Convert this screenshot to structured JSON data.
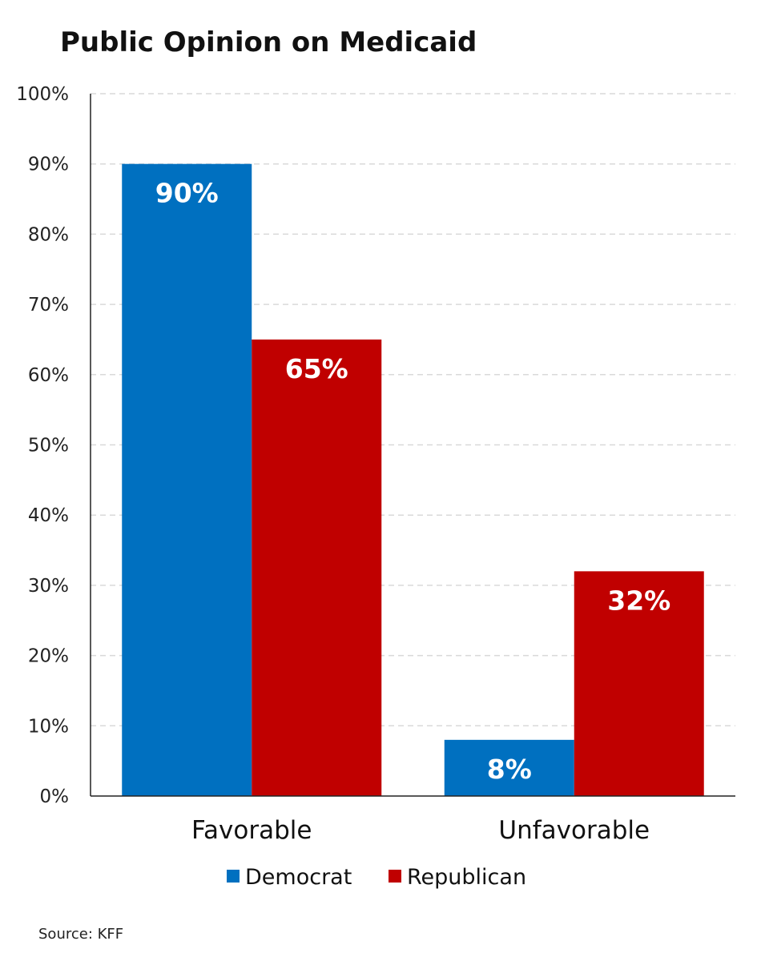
{
  "chart_data": {
    "type": "bar",
    "title": "Public Opinion on Medicaid",
    "categories": [
      "Favorable",
      "Unfavorable"
    ],
    "series": [
      {
        "name": "Democrat",
        "color": "#0070C0",
        "values": [
          90,
          8
        ],
        "labels": [
          "90%",
          "8%"
        ]
      },
      {
        "name": "Republican",
        "color": "#C00000",
        "values": [
          65,
          32
        ],
        "labels": [
          "65%",
          "32%"
        ]
      }
    ],
    "ylim": [
      0,
      100
    ],
    "yticks": [
      0,
      10,
      20,
      30,
      40,
      50,
      60,
      70,
      80,
      90,
      100
    ],
    "ytick_labels": [
      "0%",
      "10%",
      "20%",
      "30%",
      "40%",
      "50%",
      "60%",
      "70%",
      "80%",
      "90%",
      "100%"
    ],
    "xlabel": "",
    "ylabel": "",
    "grid": true,
    "legend_position": "bottom-center"
  },
  "source": "Source: KFF"
}
